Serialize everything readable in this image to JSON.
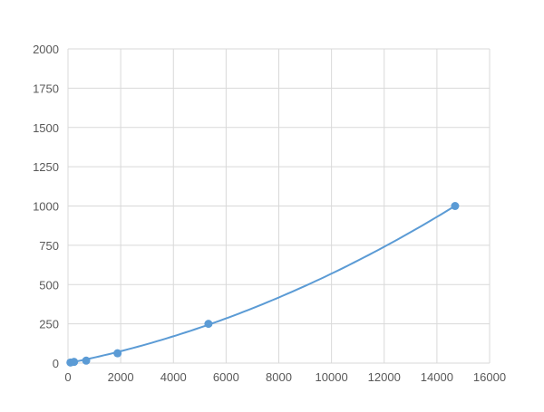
{
  "chart_data": {
    "type": "scatter",
    "title": "",
    "xlabel": "",
    "ylabel": "",
    "xlim": [
      0,
      16000
    ],
    "ylim": [
      0,
      2000
    ],
    "xticks": [
      0,
      2000,
      4000,
      6000,
      8000,
      10000,
      12000,
      14000,
      16000
    ],
    "yticks": [
      0,
      250,
      500,
      750,
      1000,
      1250,
      1500,
      1750,
      2000
    ],
    "grid": true,
    "legend": "none",
    "series": [
      {
        "x": [
          94,
          230,
          690,
          1880,
          5330,
          14690
        ],
        "y": [
          3.9,
          7.8,
          15.6,
          62.5,
          250,
          1000
        ],
        "trendline": "smooth polynomial fit",
        "color": "#5b9bd5"
      }
    ]
  }
}
